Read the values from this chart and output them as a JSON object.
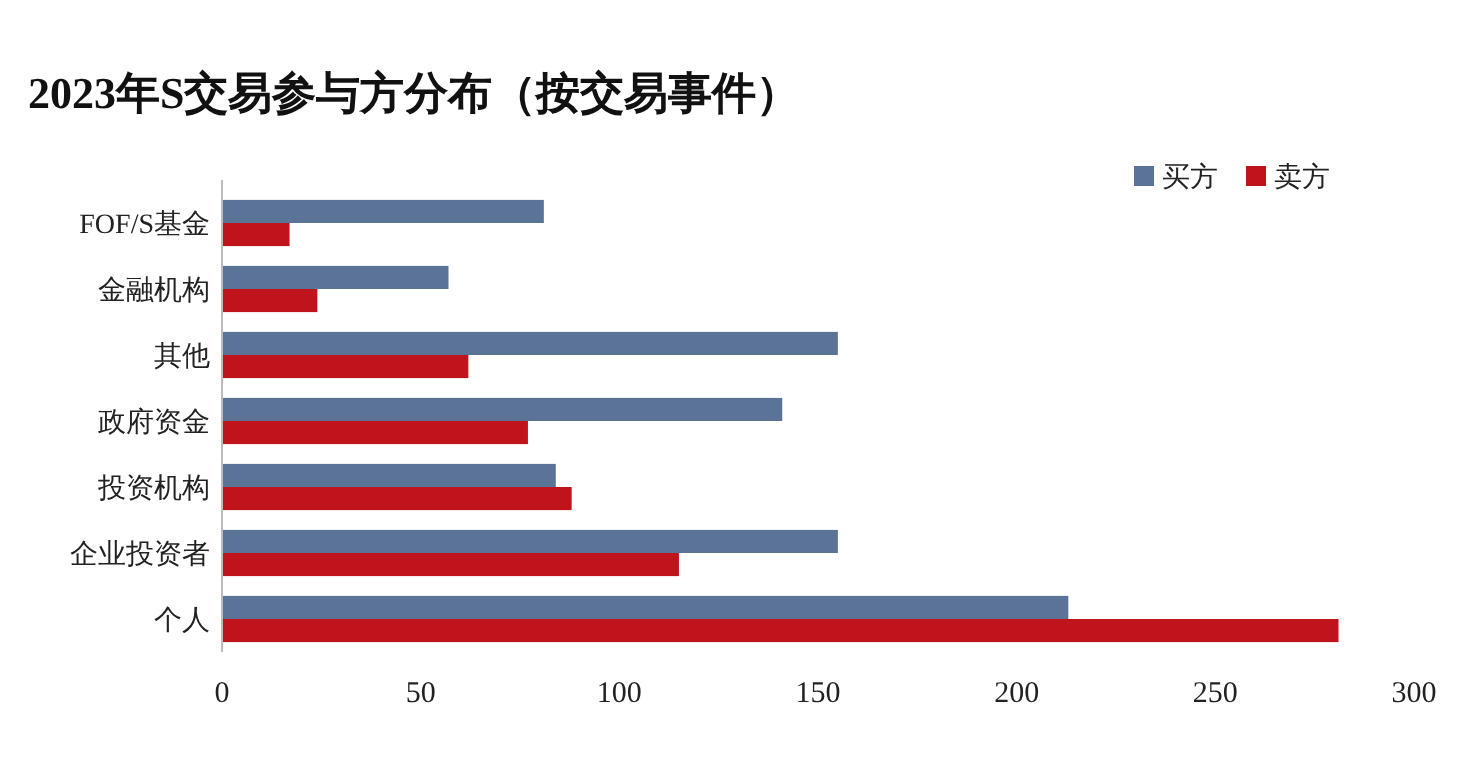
{
  "chart_data": {
    "type": "bar",
    "orientation": "horizontal",
    "title": "2023年S交易参与方分布（按交易事件）",
    "categories": [
      "FOF/S基金",
      "金融机构",
      "其他",
      "政府资金",
      "投资机构",
      "企业投资者",
      "个人"
    ],
    "series": [
      {
        "name": "买方",
        "color": "#5a7396",
        "values": [
          81,
          57,
          155,
          141,
          84,
          155,
          213
        ]
      },
      {
        "name": "卖方",
        "color": "#c0141c",
        "values": [
          17,
          24,
          62,
          77,
          88,
          115,
          281
        ]
      }
    ],
    "xlim": [
      0,
      300
    ],
    "xticks": [
      0,
      50,
      100,
      150,
      200,
      250,
      300
    ],
    "grid": false,
    "legend": "top right"
  }
}
